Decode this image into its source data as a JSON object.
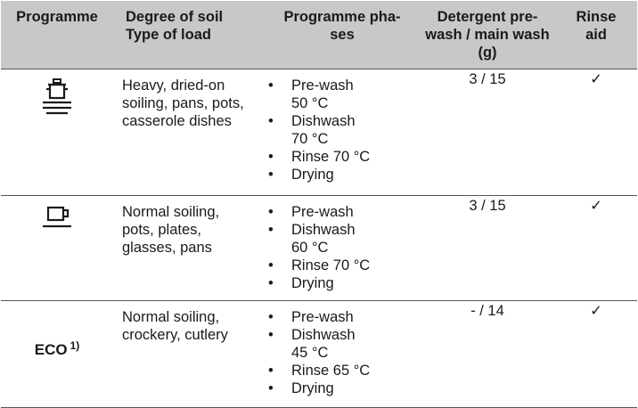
{
  "headers": {
    "programme": "Programme",
    "degree_line1": "Degree of soil",
    "degree_line2": "Type of load",
    "phases_line1": "Programme pha-",
    "phases_line2": "ses",
    "detergent_line1": "Detergent pre-",
    "detergent_line2": "wash / main wash",
    "detergent_line3": "(g)",
    "rinse_line1": "Rinse",
    "rinse_line2": "aid"
  },
  "rows": [
    {
      "icon": "pot-icon",
      "soil": [
        "Heavy, dried-on",
        "soiling, pans, pots,",
        "casserole dishes"
      ],
      "phases": [
        [
          "Pre-wash",
          "50 °C"
        ],
        [
          "Dishwash",
          "70 °C"
        ],
        [
          "Rinse 70 °C"
        ],
        [
          "Drying"
        ]
      ],
      "detergent": "3 / 15",
      "rinse": "✓"
    },
    {
      "icon": "cup-icon",
      "soil": [
        "Normal soiling,",
        "pots, plates,",
        "glasses, pans"
      ],
      "phases": [
        [
          "Pre-wash"
        ],
        [
          "Dishwash",
          "60 °C"
        ],
        [
          "Rinse 70 °C"
        ],
        [
          "Drying"
        ]
      ],
      "detergent": "3 / 15",
      "rinse": "✓"
    },
    {
      "label": "ECO",
      "footnote": "1)",
      "soil": [
        "Normal soiling,",
        "crockery, cutlery"
      ],
      "phases": [
        [
          "Pre-wash"
        ],
        [
          "Dishwash",
          "45 °C"
        ],
        [
          "Rinse 65 °C"
        ],
        [
          "Drying"
        ]
      ],
      "detergent": "- / 14",
      "rinse": "✓"
    }
  ]
}
